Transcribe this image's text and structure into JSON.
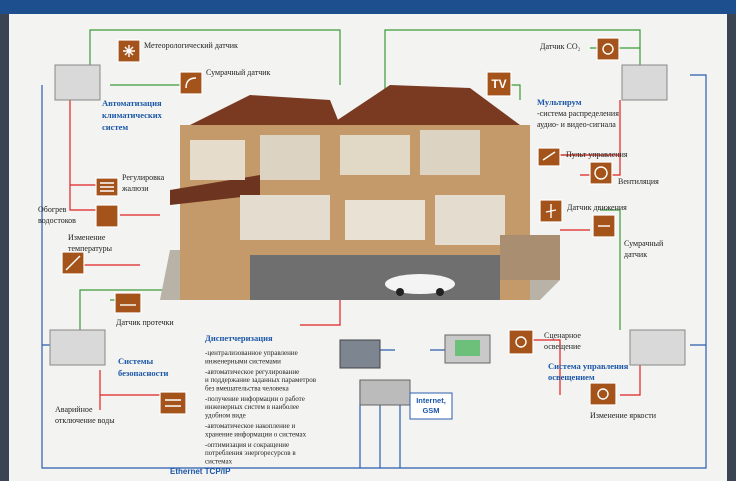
{
  "callouts": [
    {
      "lines": [
        "Метеорологический датчик"
      ]
    },
    {
      "lines": [
        "Сумрачный датчик"
      ]
    },
    {
      "lines": [
        "Автоматизация",
        "климатических",
        "систем"
      ]
    },
    {
      "lines": [
        "Регулировка",
        "жалюзи"
      ]
    },
    {
      "lines": [
        "Обогрев",
        "водостоков"
      ]
    },
    {
      "lines": [
        "Изменение",
        "температуры"
      ]
    },
    {
      "lines": [
        "Датчик протечки"
      ]
    },
    {
      "lines": [
        "Системы",
        "безопасности"
      ]
    },
    {
      "lines": [
        "Аварийное",
        "отключение воды"
      ]
    },
    {
      "lines": [
        "Датчик CO₂"
      ]
    },
    {
      "lines": [
        "TV"
      ]
    },
    {
      "lines": [
        "Мультирум",
        "-система распределения",
        "аудио- и видео-сигнала"
      ]
    },
    {
      "lines": [
        "Пульт управления"
      ]
    },
    {
      "lines": [
        "Вентиляция"
      ]
    },
    {
      "lines": [
        "Датчик движения"
      ]
    },
    {
      "lines": [
        "Сумрачный",
        "датчик"
      ]
    },
    {
      "lines": [
        "Сценарное",
        "освещение"
      ]
    },
    {
      "lines": [
        "Система управления",
        "освещением"
      ]
    },
    {
      "lines": [
        "Изменение яркости"
      ]
    },
    {
      "lines": [
        "Internet,",
        "GSM"
      ]
    },
    {
      "lines": [
        "Ethernet TCP/IP"
      ]
    }
  ],
  "dispatch": {
    "title": "Диспетчеризация",
    "items": [
      [
        "-централизованное управление",
        "инженерными системами"
      ],
      [
        "-автоматическое регулирование",
        "и поддержание заданных параметров",
        "без вмешательства человека"
      ],
      [
        "-получение информации о работе",
        "инженерных систем в наиболее",
        "удобном виде"
      ],
      [
        "-автоматическое накопление и",
        "хранение информации о системах"
      ],
      [
        "-оптимизация и сокращение",
        "потребления энергоресурсов в",
        "системах"
      ]
    ]
  }
}
